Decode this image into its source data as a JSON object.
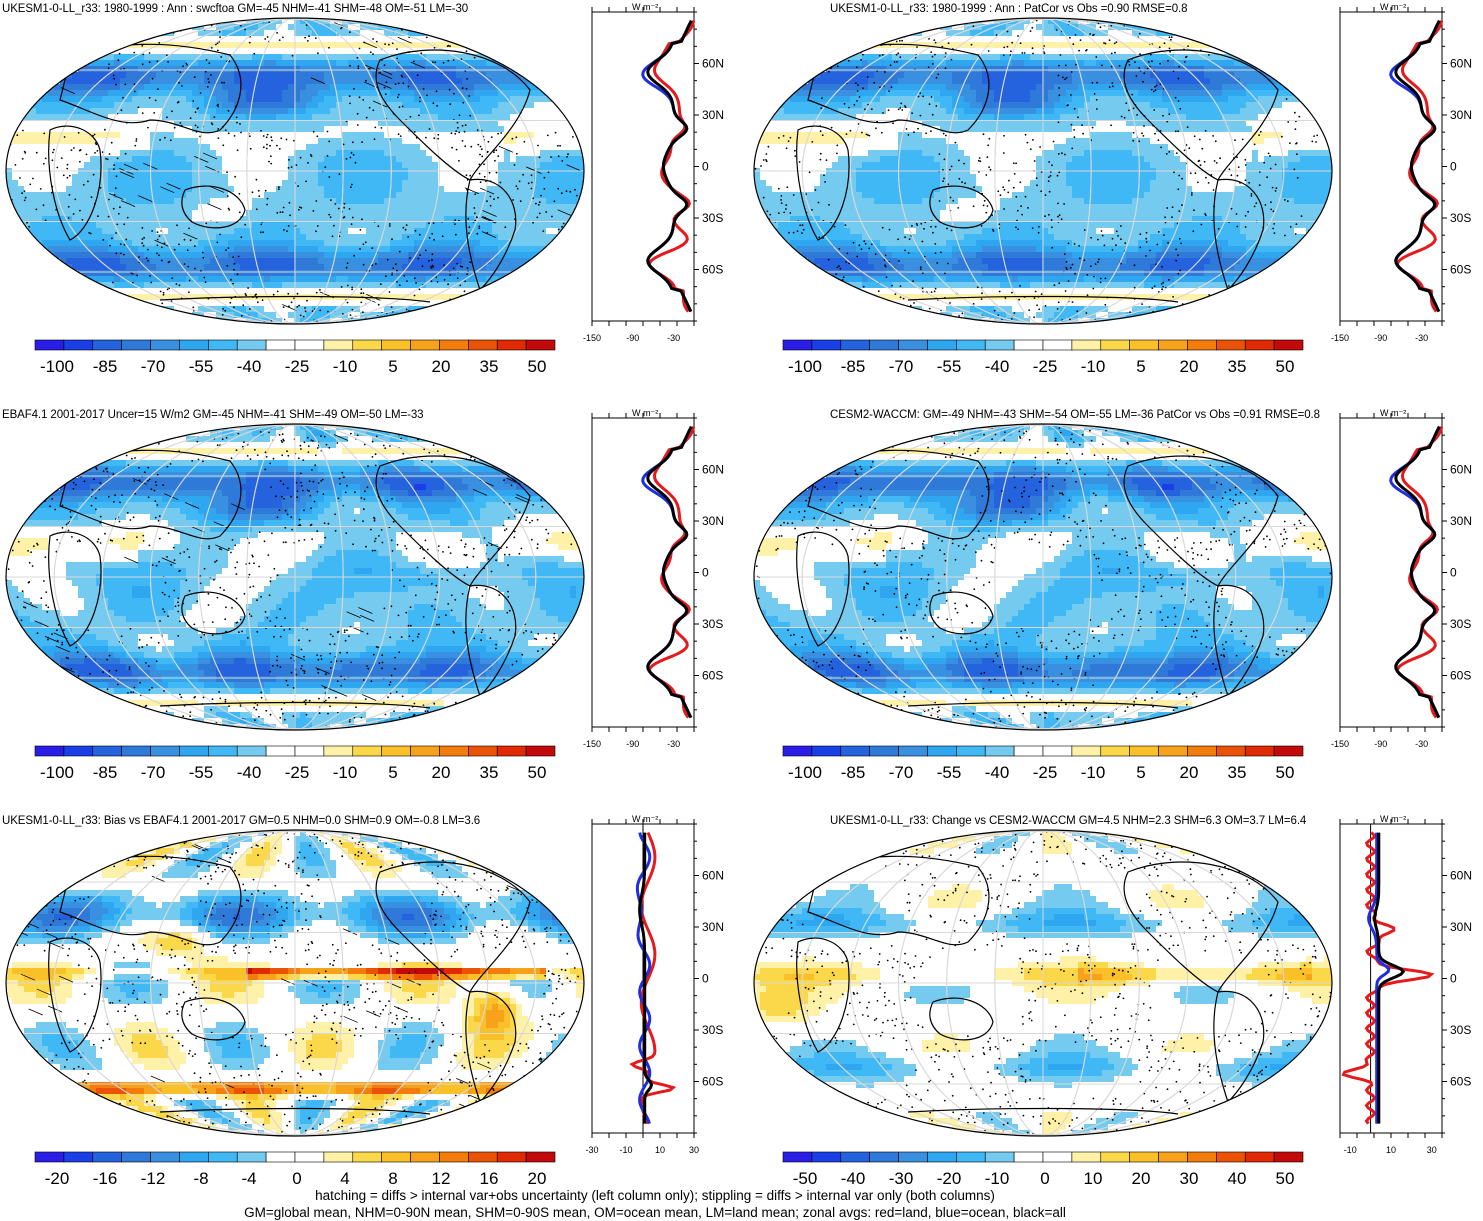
{
  "panels": [
    {
      "title": "UKESM1-0-LL_r33: 1980-1999 : Ann : swcftoa GM=-45 NHM=-41 SHM=-48 OM=-51 LM=-30",
      "variant": "a",
      "hatch": true,
      "colorbar": {
        "min": -105,
        "max": 55,
        "ticks": [
          "-100",
          "-85",
          "-70",
          "-55",
          "-40",
          "-25",
          "-10",
          "5",
          "20",
          "35",
          "50"
        ]
      },
      "zonal": {
        "unit": "W m⁻²",
        "xlim": [
          -150,
          0
        ],
        "xticks": [
          "-150",
          "-90",
          "-30"
        ],
        "zero_line": false
      }
    },
    {
      "title": "UKESM1-0-LL_r33: 1980-1999 : Ann : PatCor vs Obs =0.90 RMSE=0.8",
      "variant": "a",
      "hatch": false,
      "colorbar": {
        "min": -105,
        "max": 55,
        "ticks": [
          "-100",
          "-85",
          "-70",
          "-55",
          "-40",
          "-25",
          "-10",
          "5",
          "20",
          "35",
          "50"
        ]
      },
      "zonal": {
        "unit": "W m⁻²",
        "xlim": [
          -150,
          0
        ],
        "xticks": [
          "-150",
          "-90",
          "-30"
        ],
        "zero_line": false
      }
    },
    {
      "title": "EBAF4.1 2001-2017 Uncer=15 W/m2 GM=-45 NHM=-41 SHM=-49 OM=-50 LM=-33",
      "variant": "b",
      "hatch": true,
      "colorbar": {
        "min": -105,
        "max": 55,
        "ticks": [
          "-100",
          "-85",
          "-70",
          "-55",
          "-40",
          "-25",
          "-10",
          "5",
          "20",
          "35",
          "50"
        ]
      },
      "zonal": {
        "unit": "W m⁻²",
        "xlim": [
          -150,
          0
        ],
        "xticks": [
          "-150",
          "-90",
          "-30"
        ],
        "zero_line": false
      }
    },
    {
      "title": "CESM2-WACCM: GM=-49 NHM=-43 SHM=-54 OM=-55 LM=-36 PatCor vs Obs =0.91 RMSE=0.8",
      "variant": "b",
      "hatch": false,
      "colorbar": {
        "min": -105,
        "max": 55,
        "ticks": [
          "-100",
          "-85",
          "-70",
          "-55",
          "-40",
          "-25",
          "-10",
          "5",
          "20",
          "35",
          "50"
        ]
      },
      "zonal": {
        "unit": "W m⁻²",
        "xlim": [
          -150,
          0
        ],
        "xticks": [
          "-150",
          "-90",
          "-30"
        ],
        "zero_line": false
      }
    },
    {
      "title": "UKESM1-0-LL_r33: Bias vs EBAF4.1 2001-2017 GM=0.5 NHM=0.0 SHM=0.9 OM=-0.8 LM=3.6",
      "variant": "c",
      "hatch": true,
      "colorbar": {
        "min": -22,
        "max": 22,
        "ticks": [
          "-20",
          "-16",
          "-12",
          "-8",
          "-4",
          "0",
          "4",
          "8",
          "12",
          "16",
          "20"
        ]
      },
      "zonal": {
        "unit": "W m⁻²",
        "xlim": [
          -30,
          30
        ],
        "xticks": [
          "-30",
          "-10",
          "10",
          "30"
        ],
        "zero_line": true
      }
    },
    {
      "title": "UKESM1-0-LL_r33: Change vs CESM2-WACCM GM=4.5 NHM=2.3 SHM=6.3 OM=3.7 LM=6.4",
      "variant": "d",
      "hatch": false,
      "colorbar": {
        "min": -55,
        "max": 55,
        "ticks": [
          "-50",
          "-40",
          "-30",
          "-20",
          "-10",
          "0",
          "10",
          "20",
          "30",
          "40",
          "50"
        ]
      },
      "zonal": {
        "unit": "W m⁻²",
        "xlim": [
          -15,
          35
        ],
        "xticks": [
          "-10",
          "10",
          "30"
        ],
        "zero_line": true
      }
    }
  ],
  "lat_ticks": [
    "60N",
    "30N",
    "0",
    "30S",
    "60S"
  ],
  "colors": {
    "palette": [
      "#2a1ee6",
      "#1a3fe6",
      "#2563de",
      "#2f7ad8",
      "#3a90e0",
      "#2fa6f0",
      "#40b8f5",
      "#74cbef",
      "#ffffff",
      "#ffffff",
      "#fff2a8",
      "#fbd84a",
      "#f9c02a",
      "#f7a21a",
      "#f27d0c",
      "#ea5306",
      "#e02a04",
      "#c20a0a"
    ],
    "land": "#e41a1c",
    "ocean": "#1f2ee0",
    "all": "#000000"
  },
  "footer": {
    "line1": "hatching = diffs > internal var+obs uncertainty (left column only); stippling = diffs > internal var only (both columns)",
    "line2": "GM=global mean, NHM=0-90N mean, SHM=0-90S mean, OM=ocean mean, LM=land mean; zonal avgs: red=land, blue=ocean, black=all"
  },
  "chart_data": [
    {
      "type": "heatmap",
      "title": "UKESM1-0-LL_r33: 1980-1999 : Ann : swcftoa GM=-45 NHM=-41 SHM=-48 OM=-51 LM=-30",
      "colorbar_ticks": [
        -100,
        -85,
        -70,
        -55,
        -40,
        -25,
        -10,
        5,
        20,
        35,
        50
      ],
      "zonal_mean": {
        "type": "line",
        "xlim": [
          -150,
          0
        ],
        "y": [
          "60N",
          "30N",
          "0",
          "30S",
          "60S"
        ],
        "series": [
          {
            "name": "land",
            "values": [
              -35,
              -25,
              -55,
              -40,
              -20
            ]
          },
          {
            "name": "ocean",
            "values": [
              -60,
              -45,
              -45,
              -55,
              -80
            ]
          },
          {
            "name": "all",
            "values": [
              -45,
              -40,
              -45,
              -55,
              -78
            ]
          }
        ]
      }
    },
    {
      "type": "heatmap",
      "title": "UKESM1-0-LL_r33: 1980-1999 : Ann : PatCor vs Obs =0.90 RMSE=0.8",
      "colorbar_ticks": [
        -100,
        -85,
        -70,
        -55,
        -40,
        -25,
        -10,
        5,
        20,
        35,
        50
      ],
      "zonal_mean": {
        "type": "line",
        "xlim": [
          -150,
          0
        ],
        "y": [
          "60N",
          "30N",
          "0",
          "30S",
          "60S"
        ],
        "series": [
          {
            "name": "land",
            "values": [
              -30,
              -30,
              -55,
              -40,
              -20
            ]
          },
          {
            "name": "ocean",
            "values": [
              -65,
              -45,
              -50,
              -55,
              -80
            ]
          },
          {
            "name": "all",
            "values": [
              -50,
              -40,
              -50,
              -55,
              -78
            ]
          }
        ]
      }
    },
    {
      "type": "heatmap",
      "title": "EBAF4.1 2001-2017 Uncer=15 W/m2 GM=-45 NHM=-41 SHM=-49 OM=-50 LM=-33",
      "colorbar_ticks": [
        -100,
        -85,
        -70,
        -55,
        -40,
        -25,
        -10,
        5,
        20,
        35,
        50
      ],
      "zonal_mean": {
        "type": "line",
        "xlim": [
          -150,
          0
        ],
        "y": [
          "60N",
          "30N",
          "0",
          "30S",
          "60S"
        ],
        "series": [
          {
            "name": "land",
            "values": [
              -35,
              -35,
              -45,
              -40,
              -25
            ]
          },
          {
            "name": "ocean",
            "values": [
              -55,
              -45,
              -40,
              -55,
              -75
            ]
          },
          {
            "name": "all",
            "values": [
              -45,
              -40,
              -40,
              -55,
              -72
            ]
          }
        ]
      }
    },
    {
      "type": "heatmap",
      "title": "CESM2-WACCM: GM=-49 NHM=-43 SHM=-54 OM=-55 LM=-36 PatCor vs Obs =0.91 RMSE=0.8",
      "colorbar_ticks": [
        -100,
        -85,
        -70,
        -55,
        -40,
        -25,
        -10,
        5,
        20,
        35,
        50
      ],
      "zonal_mean": {
        "type": "line",
        "xlim": [
          -150,
          0
        ],
        "y": [
          "60N",
          "30N",
          "0",
          "30S",
          "60S"
        ],
        "series": [
          {
            "name": "land",
            "values": [
              -30,
              -30,
              -60,
              -45,
              -40
            ]
          },
          {
            "name": "ocean",
            "values": [
              -65,
              -50,
              -50,
              -60,
              -85
            ]
          },
          {
            "name": "all",
            "values": [
              -50,
              -45,
              -50,
              -58,
              -82
            ]
          }
        ]
      }
    },
    {
      "type": "heatmap",
      "title": "UKESM1-0-LL_r33: Bias vs EBAF4.1 2001-2017 GM=0.5 NHM=0.0 SHM=0.9 OM=-0.8 LM=3.6",
      "colorbar_ticks": [
        -20,
        -16,
        -12,
        -8,
        -4,
        0,
        4,
        8,
        12,
        16,
        20
      ],
      "zonal_mean": {
        "type": "line",
        "xlim": [
          -30,
          30
        ],
        "y": [
          "60N",
          "30N",
          "0",
          "30S",
          "60S"
        ],
        "series": [
          {
            "name": "land",
            "values": [
              5,
              6,
              -10,
              3,
              15
            ]
          },
          {
            "name": "ocean",
            "values": [
              -3,
              -8,
              -5,
              -3,
              5
            ]
          },
          {
            "name": "all",
            "values": [
              0,
              -5,
              -3,
              -2,
              6
            ]
          }
        ]
      }
    },
    {
      "type": "heatmap",
      "title": "UKESM1-0-LL_r33: Change vs CESM2-WACCM GM=4.5 NHM=2.3 SHM=6.3 OM=3.7 LM=6.4",
      "colorbar_ticks": [
        -50,
        -40,
        -30,
        -20,
        -10,
        0,
        10,
        20,
        30,
        40,
        50
      ],
      "zonal_mean": {
        "type": "line",
        "xlim": [
          -15,
          35
        ],
        "y": [
          "60N",
          "30N",
          "0",
          "30S",
          "60S"
        ],
        "series": [
          {
            "name": "land",
            "values": [
              4,
              12,
              30,
              3,
              -8
            ]
          },
          {
            "name": "ocean",
            "values": [
              2,
              -2,
              0,
              2,
              4
            ]
          },
          {
            "name": "all",
            "values": [
              3,
              2,
              10,
              4,
              3
            ]
          }
        ]
      }
    }
  ]
}
